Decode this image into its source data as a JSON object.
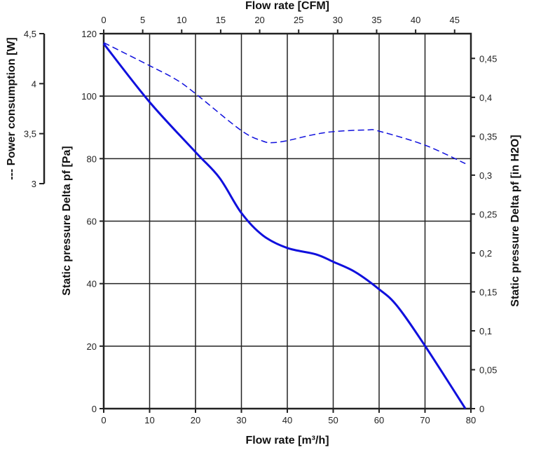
{
  "chart_data": {
    "type": "line",
    "x_bottom": {
      "label": "Flow rate [m³/h]",
      "range": [
        0,
        80
      ],
      "ticks": [
        0,
        10,
        20,
        30,
        40,
        50,
        60,
        70,
        80
      ]
    },
    "x_top": {
      "label": "Flow rate [CFM]",
      "range": [
        0,
        47.09
      ],
      "ticks": [
        "0",
        "5",
        "10",
        "15",
        "20",
        "25",
        "30",
        "35",
        "40",
        "45"
      ]
    },
    "y_left": {
      "label": "Static pressure Delta pf [Pa]",
      "range": [
        0,
        120
      ],
      "ticks": [
        0,
        20,
        40,
        60,
        80,
        100,
        120
      ]
    },
    "y_right": {
      "label": "Static pressure Delta pf [in H2O]",
      "range": [
        0,
        0.4818
      ],
      "ticks": [
        "0",
        "0,05",
        "0,1",
        "0,15",
        "0,2",
        "0,25",
        "0,3",
        "0,35",
        "0,4",
        "0,45"
      ]
    },
    "y_power": {
      "label": "--- Power consumption [W]",
      "range": [
        3,
        4.5
      ],
      "ticks": [
        "3",
        "3,5",
        "4",
        "4,5"
      ]
    },
    "grid": true,
    "colors": {
      "curve": "#1010dd",
      "grid": "#222222"
    },
    "series": [
      {
        "name": "Static pressure",
        "axis": "y_left",
        "style": "solid",
        "x": [
          0,
          10,
          20,
          25.2,
          30,
          34.7,
          40,
          46.2,
          50,
          54.7,
          60,
          63.9,
          70,
          78.8
        ],
        "y": [
          116.8,
          98.1,
          82.1,
          73.9,
          62.6,
          55.4,
          51.4,
          49.4,
          47,
          43.8,
          38.2,
          32.9,
          20.1,
          0
        ]
      },
      {
        "name": "Power consumption",
        "axis": "y_power",
        "style": "dashed",
        "x": [
          0,
          10,
          15.8,
          20,
          30,
          34.7,
          36.8,
          40,
          45.2,
          50,
          57.3,
          60,
          70,
          78.8
        ],
        "y": [
          4.41,
          4.18,
          4.04,
          3.9,
          3.53,
          3.425,
          3.41,
          3.43,
          3.485,
          3.52,
          3.537,
          3.525,
          3.385,
          3.2
        ]
      }
    ]
  }
}
